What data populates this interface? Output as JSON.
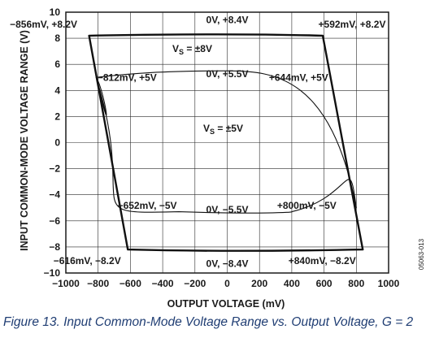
{
  "chart_data": {
    "type": "line",
    "xlabel": "OUTPUT VOLTAGE (mV)",
    "ylabel": "INPUT COMMON-MODE VOLTAGE RANGE (V)",
    "xlim": [
      -1000,
      1000
    ],
    "ylim": [
      -10,
      10
    ],
    "xticks": [
      "−1000",
      "−800",
      "−600",
      "−400",
      "−200",
      "0",
      "200",
      "400",
      "600",
      "800",
      "1000"
    ],
    "yticks": [
      "10",
      "8",
      "6",
      "4",
      "2",
      "0",
      "−2",
      "−4",
      "−6",
      "−8",
      "−10"
    ],
    "grid": true,
    "series": [
      {
        "name": "VS = ±8V",
        "points": [
          [
            -856,
            8.2
          ],
          [
            0,
            8.4
          ],
          [
            592,
            8.2
          ],
          [
            840,
            -8.2
          ],
          [
            0,
            -8.4
          ],
          [
            -616,
            -8.2
          ],
          [
            -856,
            8.2
          ]
        ]
      },
      {
        "name": "VS = ±5V",
        "points": [
          [
            -812,
            5.0
          ],
          [
            -600,
            5.3
          ],
          [
            0,
            5.5
          ],
          [
            400,
            5.3
          ],
          [
            644,
            5.0
          ],
          [
            800,
            -5.0
          ],
          [
            400,
            -5.3
          ],
          [
            0,
            -5.5
          ],
          [
            -300,
            -5.3
          ],
          [
            -652,
            -5.0
          ],
          [
            -812,
            5.0
          ]
        ]
      }
    ],
    "annotations": [
      {
        "text": "−856mV, +8.2V",
        "x": -856,
        "y": 8.2
      },
      {
        "text": "0V, +8.4V",
        "x": 0,
        "y": 8.4
      },
      {
        "text": "+592mV, +8.2V",
        "x": 592,
        "y": 8.2
      },
      {
        "text": "−812mV, +5V",
        "x": -812,
        "y": 5.0
      },
      {
        "text": "0V, +5.5V",
        "x": 0,
        "y": 5.5
      },
      {
        "text": "+644mV, +5V",
        "x": 644,
        "y": 5.0
      },
      {
        "text": "−652mV, −5V",
        "x": -652,
        "y": -5.0
      },
      {
        "text": "0V, −5.5V",
        "x": 0,
        "y": -5.5
      },
      {
        "text": "+800mV, −5V",
        "x": 800,
        "y": -5.0
      },
      {
        "text": "−616mV, −8.2V",
        "x": -616,
        "y": -8.2
      },
      {
        "text": "0V, −8.4V",
        "x": 0,
        "y": -8.4
      },
      {
        "text": "+840mV, −8.2V",
        "x": 840,
        "y": -8.2
      }
    ],
    "labels": {
      "vs8_main": "V",
      "vs8_sub": "S",
      "vs8_value": " = ±8V",
      "vs5_main": "V",
      "vs5_sub": "S",
      "vs5_value": " = ±5V"
    }
  },
  "figure_code": "05063-013",
  "caption": "Figure 13. Input Common-Mode Voltage Range vs. Output Voltage, G = 2"
}
